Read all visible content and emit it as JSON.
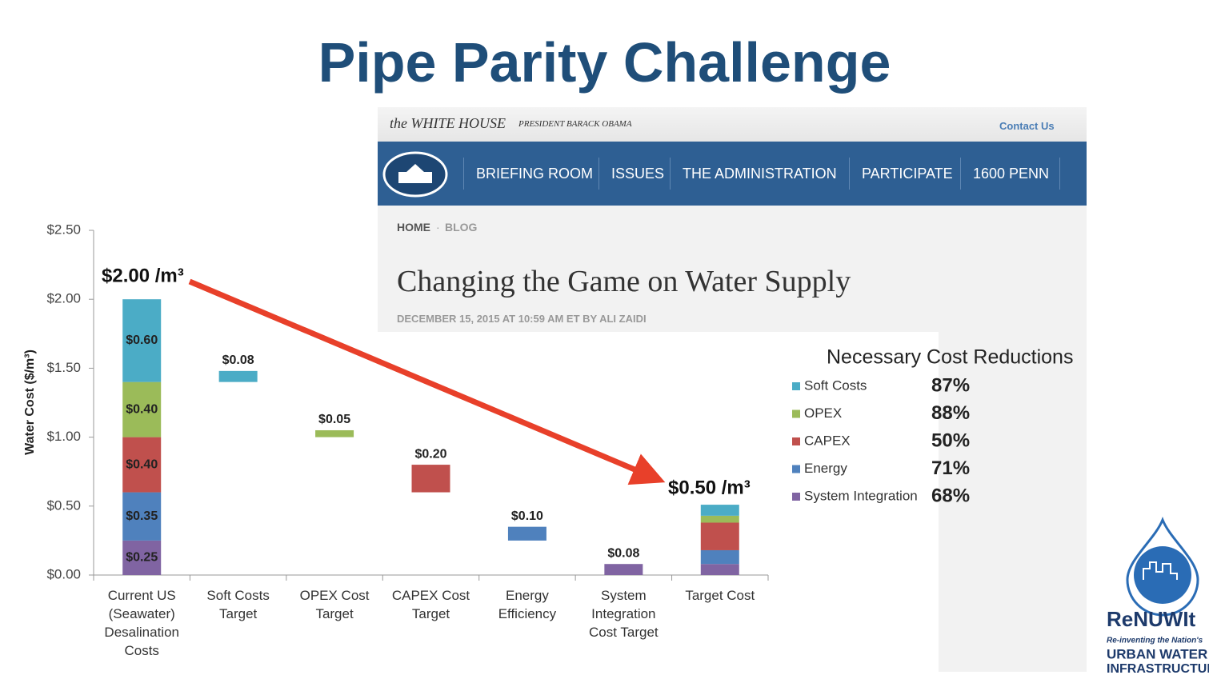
{
  "slide_title": "Pipe Parity Challenge",
  "whitehouse": {
    "brand": "the WHITE HOUSE",
    "president": "PRESIDENT BARACK OBAMA",
    "contact": "Contact Us",
    "nav": [
      "BRIEFING ROOM",
      "ISSUES",
      "THE ADMINISTRATION",
      "PARTICIPATE",
      "1600 PENN"
    ],
    "breadcrumb": [
      "HOME",
      "BLOG"
    ],
    "headline": "Changing the Game on Water Supply",
    "dateline": "DECEMBER 15, 2015 AT 10:59 AM ET BY ALI ZAIDI"
  },
  "chart_data": {
    "type": "waterfall",
    "y_label": "Water Cost ($/m³)",
    "categories": [
      "Current US (Seawater) Desalination Costs",
      "Soft Costs Target",
      "OPEX Cost Target",
      "CAPEX Cost Target",
      "Energy Efficiency",
      "System Integration Cost Target",
      "Target Cost"
    ],
    "series": [
      {
        "name": "Soft Costs",
        "color": "#4bacc6",
        "values": [
          0.6,
          0.08,
          null,
          null,
          null,
          null,
          0.08
        ],
        "value_labels": [
          "$0.60",
          "$0.08",
          null,
          null,
          null,
          null,
          null
        ]
      },
      {
        "name": "OPEX",
        "color": "#9bbb59",
        "values": [
          0.4,
          null,
          0.05,
          null,
          null,
          null,
          0.05
        ],
        "value_labels": [
          "$0.40",
          null,
          "$0.05",
          null,
          null,
          null,
          null
        ]
      },
      {
        "name": "CAPEX",
        "color": "#c0504d",
        "values": [
          0.4,
          null,
          null,
          0.2,
          null,
          null,
          0.2
        ],
        "value_labels": [
          "$0.40",
          null,
          null,
          "$0.20",
          null,
          null,
          null
        ]
      },
      {
        "name": "Energy",
        "color": "#4f81bd",
        "values": [
          0.35,
          null,
          null,
          null,
          0.1,
          null,
          0.1
        ],
        "value_labels": [
          "$0.35",
          null,
          null,
          null,
          "$0.10",
          null,
          null
        ]
      },
      {
        "name": "System Integration",
        "color": "#8064a2",
        "values": [
          0.25,
          null,
          null,
          null,
          null,
          0.08,
          0.08
        ],
        "value_labels": [
          "$0.25",
          null,
          null,
          null,
          null,
          "$0.08",
          null
        ]
      }
    ],
    "ylim": [
      0,
      2.5
    ],
    "yticks": [
      {
        "value": 0,
        "label": "$0.00"
      },
      {
        "value": 0.5,
        "label": "$0.50"
      },
      {
        "value": 1,
        "label": "$1.00"
      },
      {
        "value": 1.5,
        "label": "$1.50"
      },
      {
        "value": 2,
        "label": "$2.00"
      },
      {
        "value": 2.5,
        "label": "$2.50"
      }
    ],
    "annotations": [
      "$2.00 /m³",
      "$0.50 /m³"
    ],
    "legend_title": "Necessary Cost Reductions",
    "cost_reductions": [
      "87%",
      "88%",
      "50%",
      "71%",
      "68%"
    ]
  },
  "logo": {
    "name": "ReNUWIt",
    "tagline": "Re-inventing the Nation's",
    "line1": "URBAN WATER",
    "line2": "INFRASTRUCTURE"
  }
}
